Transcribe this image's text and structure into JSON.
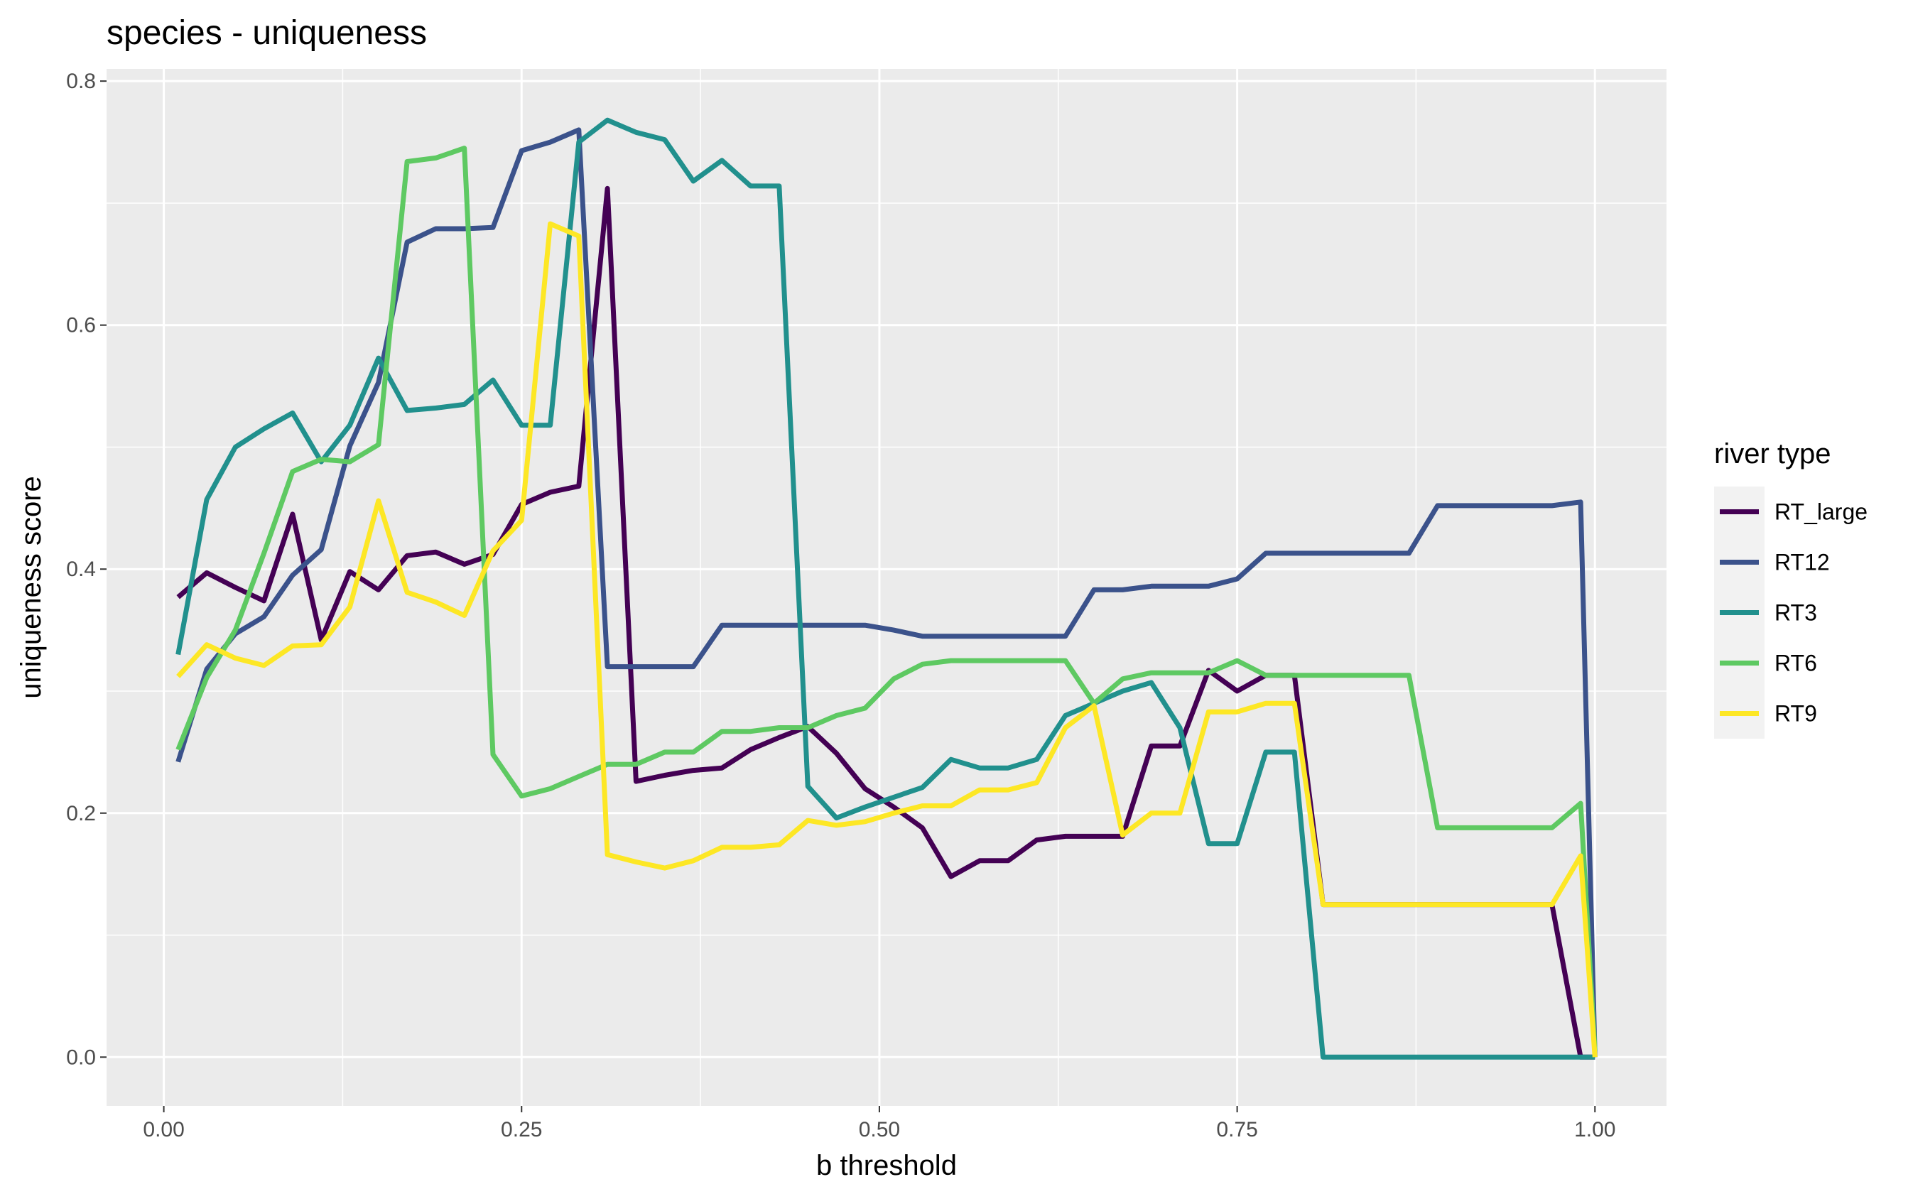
{
  "chart_data": {
    "type": "line",
    "title": "species - uniqueness",
    "xlabel": "b threshold",
    "ylabel": "uniqueness score",
    "xlim": [
      -0.04,
      1.05
    ],
    "ylim": [
      -0.04,
      0.81
    ],
    "x_ticks": [
      0.0,
      0.25,
      0.5,
      0.75,
      1.0
    ],
    "x_tick_labels": [
      "0.00",
      "0.25",
      "0.50",
      "0.75",
      "1.00"
    ],
    "y_ticks": [
      0.0,
      0.2,
      0.4,
      0.6,
      0.8
    ],
    "y_tick_labels": [
      "0.0",
      "0.2",
      "0.4",
      "0.6",
      "0.8"
    ],
    "grid": true,
    "background": "#ebebeb",
    "legend": {
      "title": "river type",
      "placement": "right"
    },
    "series": [
      {
        "name": "RT_large",
        "color": "#440154",
        "x": [
          0.01,
          0.03,
          0.05,
          0.07,
          0.09,
          0.11,
          0.13,
          0.15,
          0.17,
          0.19,
          0.21,
          0.23,
          0.25,
          0.27,
          0.29,
          0.31,
          0.33,
          0.35,
          0.37,
          0.39,
          0.41,
          0.43,
          0.45,
          0.47,
          0.49,
          0.51,
          0.53,
          0.55,
          0.57,
          0.59,
          0.61,
          0.63,
          0.65,
          0.67,
          0.69,
          0.71,
          0.73,
          0.75,
          0.77,
          0.79,
          0.81,
          0.83,
          0.85,
          0.87,
          0.89,
          0.91,
          0.93,
          0.95,
          0.97,
          0.99,
          1.0
        ],
        "y": [
          0.377,
          0.397,
          0.385,
          0.374,
          0.445,
          0.342,
          0.398,
          0.383,
          0.411,
          0.414,
          0.404,
          0.412,
          0.453,
          0.463,
          0.468,
          0.712,
          0.226,
          0.231,
          0.235,
          0.237,
          0.252,
          0.262,
          0.271,
          0.249,
          0.22,
          0.205,
          0.188,
          0.148,
          0.161,
          0.161,
          0.178,
          0.181,
          0.181,
          0.181,
          0.255,
          0.255,
          0.317,
          0.3,
          0.313,
          0.313,
          0.125,
          0.125,
          0.125,
          0.125,
          0.125,
          0.125,
          0.125,
          0.125,
          0.125,
          0.0,
          0.0
        ]
      },
      {
        "name": "RT12",
        "color": "#3b528b",
        "x": [
          0.01,
          0.03,
          0.05,
          0.07,
          0.09,
          0.11,
          0.13,
          0.15,
          0.17,
          0.19,
          0.21,
          0.23,
          0.25,
          0.27,
          0.29,
          0.31,
          0.33,
          0.35,
          0.37,
          0.39,
          0.41,
          0.43,
          0.45,
          0.47,
          0.49,
          0.51,
          0.53,
          0.55,
          0.57,
          0.59,
          0.61,
          0.63,
          0.65,
          0.67,
          0.69,
          0.71,
          0.73,
          0.75,
          0.77,
          0.79,
          0.81,
          0.83,
          0.85,
          0.87,
          0.89,
          0.91,
          0.93,
          0.95,
          0.97,
          0.99,
          1.0
        ],
        "y": [
          0.242,
          0.318,
          0.347,
          0.361,
          0.395,
          0.416,
          0.501,
          0.553,
          0.668,
          0.679,
          0.679,
          0.68,
          0.743,
          0.75,
          0.76,
          0.32,
          0.32,
          0.32,
          0.32,
          0.354,
          0.354,
          0.354,
          0.354,
          0.354,
          0.354,
          0.35,
          0.345,
          0.345,
          0.345,
          0.345,
          0.345,
          0.345,
          0.383,
          0.383,
          0.386,
          0.386,
          0.386,
          0.392,
          0.413,
          0.413,
          0.413,
          0.413,
          0.413,
          0.413,
          0.452,
          0.452,
          0.452,
          0.452,
          0.452,
          0.455,
          0.0
        ]
      },
      {
        "name": "RT3",
        "color": "#21908d",
        "x": [
          0.01,
          0.03,
          0.05,
          0.07,
          0.09,
          0.11,
          0.13,
          0.15,
          0.17,
          0.19,
          0.21,
          0.23,
          0.25,
          0.27,
          0.29,
          0.31,
          0.33,
          0.35,
          0.37,
          0.39,
          0.41,
          0.43,
          0.45,
          0.47,
          0.49,
          0.51,
          0.53,
          0.55,
          0.57,
          0.59,
          0.61,
          0.63,
          0.65,
          0.67,
          0.69,
          0.71,
          0.73,
          0.75,
          0.77,
          0.79,
          0.81,
          0.83,
          0.85,
          0.87,
          0.89,
          0.91,
          0.93,
          0.95,
          0.97,
          0.99,
          1.0
        ],
        "y": [
          0.33,
          0.457,
          0.5,
          0.515,
          0.528,
          0.488,
          0.518,
          0.573,
          0.53,
          0.532,
          0.535,
          0.555,
          0.518,
          0.518,
          0.75,
          0.768,
          0.758,
          0.752,
          0.718,
          0.735,
          0.714,
          0.714,
          0.222,
          0.196,
          0.205,
          0.213,
          0.221,
          0.244,
          0.237,
          0.237,
          0.244,
          0.28,
          0.29,
          0.3,
          0.307,
          0.27,
          0.175,
          0.175,
          0.25,
          0.25,
          0.0,
          0.0,
          0.0,
          0.0,
          0.0,
          0.0,
          0.0,
          0.0,
          0.0,
          0.0,
          0.0
        ]
      },
      {
        "name": "RT6",
        "color": "#5ec962",
        "x": [
          0.01,
          0.03,
          0.05,
          0.07,
          0.09,
          0.11,
          0.13,
          0.15,
          0.17,
          0.19,
          0.21,
          0.23,
          0.25,
          0.27,
          0.29,
          0.31,
          0.33,
          0.35,
          0.37,
          0.39,
          0.41,
          0.43,
          0.45,
          0.47,
          0.49,
          0.51,
          0.53,
          0.55,
          0.57,
          0.59,
          0.61,
          0.63,
          0.65,
          0.67,
          0.69,
          0.71,
          0.73,
          0.75,
          0.77,
          0.79,
          0.81,
          0.83,
          0.85,
          0.87,
          0.89,
          0.91,
          0.93,
          0.95,
          0.97,
          0.99,
          1.0
        ],
        "y": [
          0.252,
          0.311,
          0.35,
          0.413,
          0.48,
          0.49,
          0.488,
          0.502,
          0.734,
          0.737,
          0.745,
          0.248,
          0.214,
          0.22,
          0.23,
          0.24,
          0.24,
          0.25,
          0.25,
          0.267,
          0.267,
          0.27,
          0.27,
          0.28,
          0.286,
          0.31,
          0.322,
          0.325,
          0.325,
          0.325,
          0.325,
          0.325,
          0.29,
          0.31,
          0.315,
          0.315,
          0.315,
          0.325,
          0.313,
          0.313,
          0.313,
          0.313,
          0.313,
          0.313,
          0.188,
          0.188,
          0.188,
          0.188,
          0.188,
          0.208,
          0.005
        ]
      },
      {
        "name": "RT9",
        "color": "#fde725",
        "x": [
          0.01,
          0.03,
          0.05,
          0.07,
          0.09,
          0.11,
          0.13,
          0.15,
          0.17,
          0.19,
          0.21,
          0.23,
          0.25,
          0.27,
          0.29,
          0.31,
          0.33,
          0.35,
          0.37,
          0.39,
          0.41,
          0.43,
          0.45,
          0.47,
          0.49,
          0.51,
          0.53,
          0.55,
          0.57,
          0.59,
          0.61,
          0.63,
          0.65,
          0.67,
          0.69,
          0.71,
          0.73,
          0.75,
          0.77,
          0.79,
          0.81,
          0.83,
          0.85,
          0.87,
          0.89,
          0.91,
          0.93,
          0.95,
          0.97,
          0.99,
          1.0
        ],
        "y": [
          0.312,
          0.338,
          0.327,
          0.321,
          0.337,
          0.338,
          0.369,
          0.456,
          0.381,
          0.373,
          0.362,
          0.415,
          0.44,
          0.683,
          0.673,
          0.166,
          0.16,
          0.155,
          0.161,
          0.172,
          0.172,
          0.174,
          0.194,
          0.19,
          0.193,
          0.2,
          0.206,
          0.206,
          0.219,
          0.219,
          0.225,
          0.27,
          0.288,
          0.182,
          0.2,
          0.2,
          0.283,
          0.283,
          0.29,
          0.29,
          0.125,
          0.125,
          0.125,
          0.125,
          0.125,
          0.125,
          0.125,
          0.125,
          0.125,
          0.165,
          0.0
        ]
      }
    ]
  }
}
